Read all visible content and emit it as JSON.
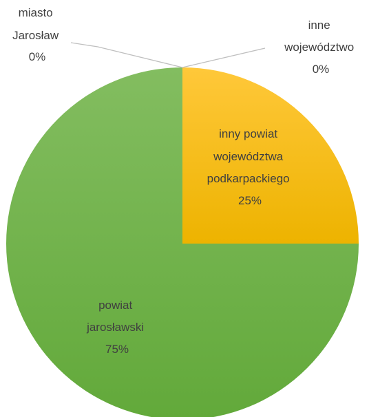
{
  "chart_data": {
    "type": "pie",
    "title": "",
    "slices": [
      {
        "label": [
          "miasto",
          "Jarosław"
        ],
        "value": 0,
        "display": "0%",
        "color": "#A5A5A5"
      },
      {
        "label": [
          "inny powiat",
          "województwa",
          "podkarpackiego"
        ],
        "value": 25,
        "display": "25%",
        "color": "#FFC000"
      },
      {
        "label": [
          "powiat",
          "jarosławski"
        ],
        "value": 75,
        "display": "75%",
        "color": "#70AD47"
      },
      {
        "label": [
          "inne",
          "województwo"
        ],
        "value": 0,
        "display": "0%",
        "color": "#5B9BD5"
      }
    ],
    "order": [
      "inne województwo",
      "inny powiat województwa podkarpackiego",
      "powiat jarosławski",
      "miasto Jarosław"
    ]
  }
}
